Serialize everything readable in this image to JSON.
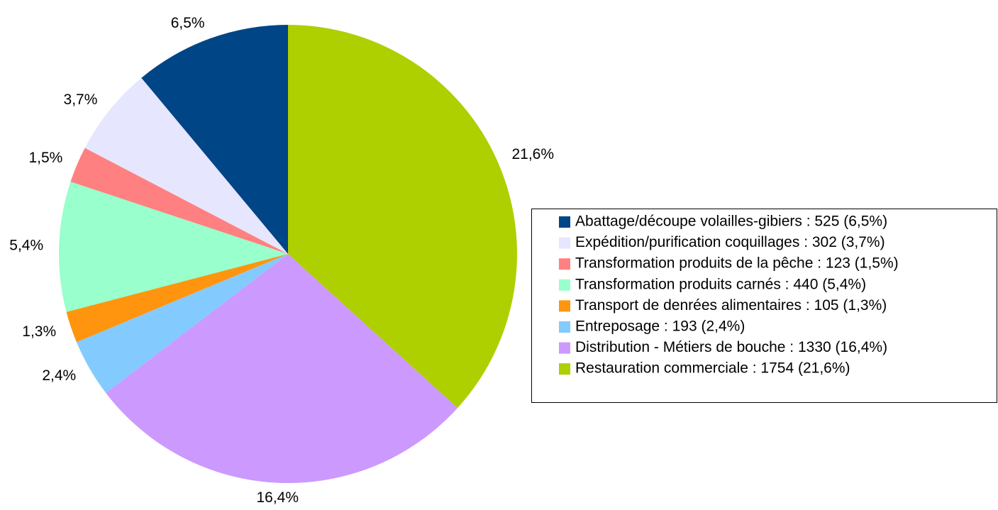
{
  "chart_data": {
    "type": "pie",
    "categories": [
      "Abattage/découpe volailles-gibiers : 525 (6,5%)",
      "Expédition/purification coquillages : 302 (3,7%)",
      "Transformation produits de la pêche : 123 (1,5%)",
      "Transformation produits carnés : 440 (5,4%)",
      "Transport de denrées alimentaires : 105 (1,3%)",
      "Entreposage : 193 (2,4%)",
      "Distribution - Métiers de bouche : 1330 (16,4%)",
      "Restauration commerciale : 1754 (21,6%)"
    ],
    "values": [
      6.5,
      3.7,
      1.5,
      5.4,
      1.3,
      2.4,
      16.4,
      21.6
    ],
    "value_labels": [
      "6,5%",
      "3,7%",
      "1,5%",
      "5,4%",
      "1,3%",
      "2,4%",
      "16,4%",
      "21,6%"
    ],
    "colors": [
      "#004586",
      "#e6e6ff",
      "#ff8080",
      "#99ffcc",
      "#ff950e",
      "#83caff",
      "#cc99ff",
      "#aecf00"
    ],
    "direction": "counterclockwise",
    "legend": "right"
  }
}
